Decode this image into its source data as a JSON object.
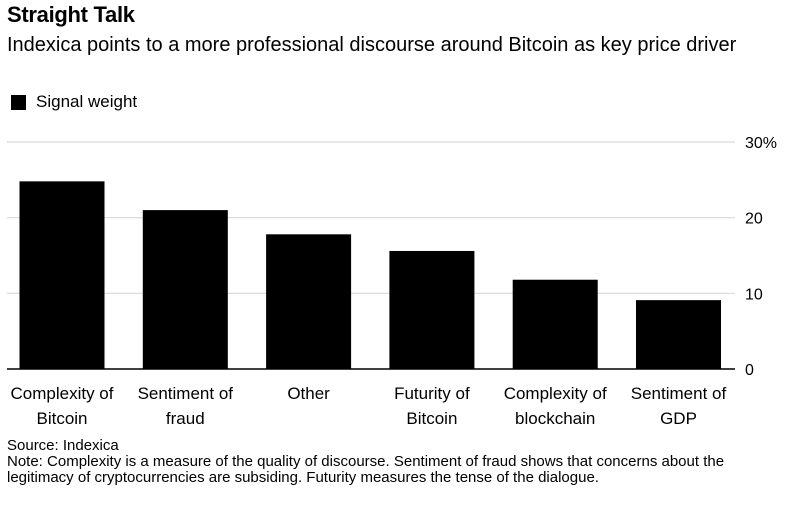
{
  "header": {
    "title": "Straight Talk",
    "subtitle": "Indexica points to a more professional discourse around Bitcoin as key price driver"
  },
  "legend": {
    "label": "Signal weight",
    "color": "#000000"
  },
  "footer": {
    "source": "Source: Indexica",
    "note": "Note: Complexity is a measure of the quality of discourse. Sentiment of fraud shows that concerns about the legitimacy of cryptocurrencies are subsiding. Futurity measures the tense of the dialogue."
  },
  "chart_data": {
    "type": "bar",
    "categories": [
      [
        "Complexity of",
        "Bitcoin"
      ],
      [
        "Sentiment of",
        "fraud"
      ],
      [
        "Other"
      ],
      [
        "Futurity of",
        "Bitcoin"
      ],
      [
        "Complexity of",
        "blockchain"
      ],
      [
        "Sentiment of",
        "GDP"
      ]
    ],
    "series": [
      {
        "name": "Signal weight",
        "values": [
          24.8,
          21.0,
          17.8,
          15.6,
          11.8,
          9.1
        ],
        "color": "#000000"
      }
    ],
    "ylim": [
      0,
      30
    ],
    "yticks": [
      0,
      10,
      20,
      30
    ],
    "ytick_labels": [
      "0",
      "10",
      "20",
      "30%"
    ],
    "y_axis_position": "right",
    "grid": true,
    "legend_position": "top-left"
  }
}
